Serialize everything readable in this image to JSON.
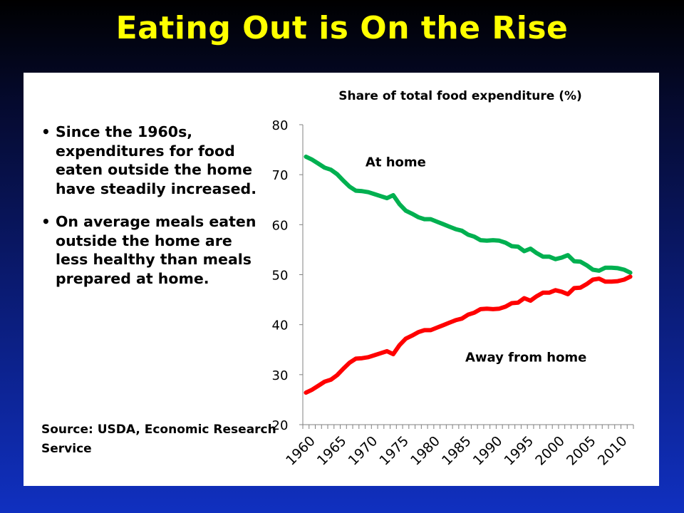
{
  "slide": {
    "title": "Eating Out is On the Rise",
    "bullets": [
      "Since the 1960s, expenditures for food eaten outside the home have steadily increased.",
      "On average meals eaten outside the home are less healthy than meals prepared at home."
    ],
    "source": "Source: USDA, Economic Research Service"
  },
  "colors": {
    "title": "#ffff00",
    "at_home": "#00b050",
    "away_from_home": "#ff0000"
  },
  "chart_data": {
    "type": "line",
    "title": "Share of total food expenditure (%)",
    "xlabel": "",
    "ylabel": "",
    "ylim": [
      20,
      80
    ],
    "yticks": [
      20,
      30,
      40,
      50,
      60,
      70,
      80
    ],
    "xticks": [
      1960,
      1965,
      1970,
      1975,
      1980,
      1985,
      1990,
      1995,
      2000,
      2005,
      2010
    ],
    "xlim": [
      1960,
      2012
    ],
    "grid": false,
    "x": [
      1960,
      1961,
      1962,
      1963,
      1964,
      1965,
      1966,
      1967,
      1968,
      1969,
      1970,
      1971,
      1972,
      1973,
      1974,
      1975,
      1976,
      1977,
      1978,
      1979,
      1980,
      1981,
      1982,
      1983,
      1984,
      1985,
      1986,
      1987,
      1988,
      1989,
      1990,
      1991,
      1992,
      1993,
      1994,
      1995,
      1996,
      1997,
      1998,
      1999,
      2000,
      2001,
      2002,
      2003,
      2004,
      2005,
      2006,
      2007,
      2008,
      2009,
      2010,
      2011,
      2012
    ],
    "series": [
      {
        "name": "At home",
        "color": "#00b050",
        "values": [
          73.6,
          73.0,
          72.2,
          71.4,
          71.0,
          70.1,
          68.8,
          67.6,
          66.8,
          66.7,
          66.5,
          66.1,
          65.7,
          65.3,
          65.9,
          64.1,
          62.8,
          62.2,
          61.5,
          61.1,
          61.1,
          60.6,
          60.1,
          59.6,
          59.1,
          58.8,
          58.0,
          57.6,
          56.9,
          56.8,
          56.9,
          56.8,
          56.4,
          55.7,
          55.6,
          54.7,
          55.2,
          54.3,
          53.6,
          53.6,
          53.1,
          53.4,
          53.9,
          52.7,
          52.6,
          51.9,
          51.0,
          50.8,
          51.4,
          51.4,
          51.3,
          51.0,
          50.4
        ]
      },
      {
        "name": "Away from home",
        "color": "#ff0000",
        "values": [
          26.4,
          27.0,
          27.8,
          28.6,
          29.0,
          29.9,
          31.2,
          32.4,
          33.2,
          33.3,
          33.5,
          33.9,
          34.3,
          34.7,
          34.1,
          35.9,
          37.2,
          37.8,
          38.5,
          38.9,
          38.9,
          39.4,
          39.9,
          40.4,
          40.9,
          41.2,
          42.0,
          42.4,
          43.1,
          43.2,
          43.1,
          43.2,
          43.6,
          44.3,
          44.4,
          45.3,
          44.8,
          45.7,
          46.4,
          46.4,
          46.9,
          46.6,
          46.1,
          47.3,
          47.4,
          48.1,
          49.0,
          49.2,
          48.6,
          48.6,
          48.7,
          49.0,
          49.6
        ]
      }
    ],
    "annotations": [
      {
        "text": "At home",
        "series": "At home"
      },
      {
        "text": "Away from home",
        "series": "Away from home"
      }
    ]
  }
}
